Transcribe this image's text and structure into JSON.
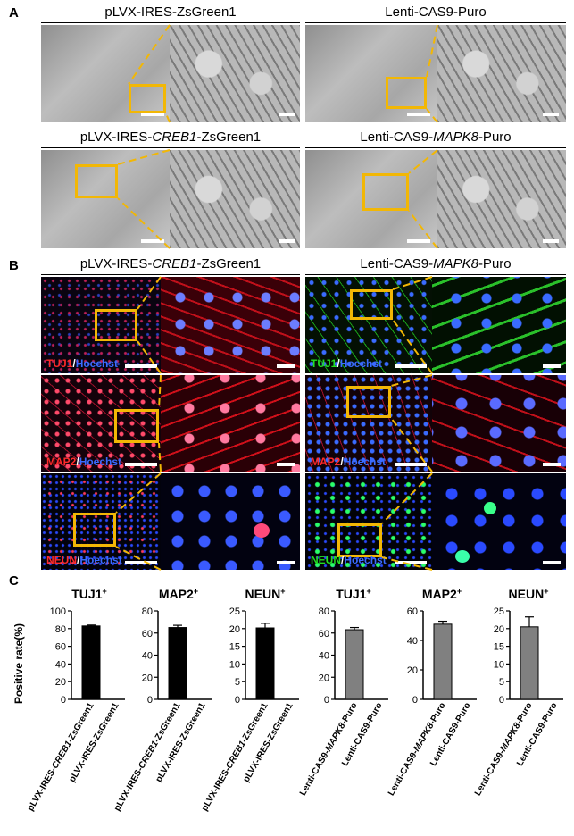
{
  "panel_labels": {
    "a": "A",
    "b": "B",
    "c": "C"
  },
  "panel_a": {
    "titles": [
      "pLVX-IRES-ZsGreen1",
      "Lenti-CAS9-Puro"
    ],
    "titles_row2": [
      {
        "pre": "pLVX-IRES-",
        "ital": "CREB1",
        "post": "-ZsGreen1"
      },
      {
        "pre": "Lenti-CAS9-",
        "ital": "MAPK8",
        "post": "-Puro"
      }
    ]
  },
  "panel_b": {
    "titles": [
      {
        "pre": "pLVX-IRES-",
        "ital": "CREB1",
        "post": "-ZsGreen1"
      },
      {
        "pre": "Lenti-CAS9-",
        "ital": "MAPK8",
        "post": "-Puro"
      }
    ],
    "stains": [
      {
        "marker": "TUJ1",
        "sep": "/",
        "counter": "Hoechst"
      },
      {
        "marker": "MAP2",
        "sep": "/",
        "counter": "Hoechst"
      },
      {
        "marker": "NEUN",
        "sep": "/",
        "counter": "Hoechst"
      }
    ],
    "colors": {
      "red": "#ff2a2a",
      "green": "#22dd22",
      "blue": "#3a6bff",
      "box": "#f2b705"
    }
  },
  "chart_data": [
    {
      "type": "bar",
      "title": "TUJ1+",
      "ylabel": "Positive rate(%)",
      "ylim": [
        0,
        100
      ],
      "yticks": [
        0,
        20,
        40,
        60,
        80,
        100
      ],
      "categories": [
        "pLVX-IRES-CREB1-ZsGreen1",
        "pLVX-IRES-ZsGreen1"
      ],
      "values": [
        83,
        0
      ],
      "errors": [
        1,
        0
      ],
      "color": "#000000"
    },
    {
      "type": "bar",
      "title": "MAP2+",
      "ylim": [
        0,
        80
      ],
      "yticks": [
        0,
        20,
        40,
        60,
        80
      ],
      "categories": [
        "pLVX-IRES-CREB1-ZsGreen1",
        "pLVX-IRES-ZsGreen1"
      ],
      "values": [
        65,
        0
      ],
      "errors": [
        2,
        0
      ],
      "color": "#000000"
    },
    {
      "type": "bar",
      "title": "NEUN+",
      "ylim": [
        0,
        25
      ],
      "yticks": [
        0,
        5,
        10,
        15,
        20,
        25
      ],
      "categories": [
        "pLVX-IRES-CREB1-ZsGreen1",
        "pLVX-IRES-ZsGreen1"
      ],
      "values": [
        20.2,
        0
      ],
      "errors": [
        1.3,
        0
      ],
      "color": "#000000"
    },
    {
      "type": "bar",
      "title": "TUJ1+",
      "ylim": [
        0,
        80
      ],
      "yticks": [
        0,
        20,
        40,
        60,
        80
      ],
      "categories": [
        "Lenti-CAS9-MAPK8-Puro",
        "Lenti-CAS9-Puro"
      ],
      "values": [
        63,
        0
      ],
      "errors": [
        2,
        0
      ],
      "color": "#808080"
    },
    {
      "type": "bar",
      "title": "MAP2+",
      "ylim": [
        0,
        60
      ],
      "yticks": [
        0,
        20,
        40,
        60
      ],
      "categories": [
        "Lenti-CAS9-MAPK8-Puro",
        "Lenti-CAS9-Puro"
      ],
      "values": [
        51,
        0
      ],
      "errors": [
        2,
        0
      ],
      "color": "#808080"
    },
    {
      "type": "bar",
      "title": "NEUN+",
      "ylim": [
        0,
        25
      ],
      "yticks": [
        0,
        5,
        10,
        15,
        20,
        25
      ],
      "categories": [
        "Lenti-CAS9-MAPK8-Puro",
        "Lenti-CAS9-Puro"
      ],
      "values": [
        20.5,
        0
      ],
      "errors": [
        2.8,
        0
      ],
      "color": "#808080"
    }
  ],
  "chart_labels": {
    "titles": [
      {
        "base": "TUJ1",
        "sup": "+"
      },
      {
        "base": "MAP2",
        "sup": "+"
      },
      {
        "base": "NEUN",
        "sup": "+"
      },
      {
        "base": "TUJ1",
        "sup": "+"
      },
      {
        "base": "MAP2",
        "sup": "+"
      },
      {
        "base": "NEUN",
        "sup": "+"
      }
    ],
    "xlabels": [
      [
        {
          "pre": "pLVX-IRES-",
          "ital": "CREB1",
          "post": "-ZsGreen1"
        },
        {
          "pre": "pLVX-IRES-ZsGreen1",
          "ital": "",
          "post": ""
        }
      ],
      [
        {
          "pre": "Lenti-CAS9-",
          "ital": "MAPK8",
          "post": "-Puro"
        },
        {
          "pre": "Lenti-CAS9-Puro",
          "ital": "",
          "post": ""
        }
      ]
    ]
  }
}
